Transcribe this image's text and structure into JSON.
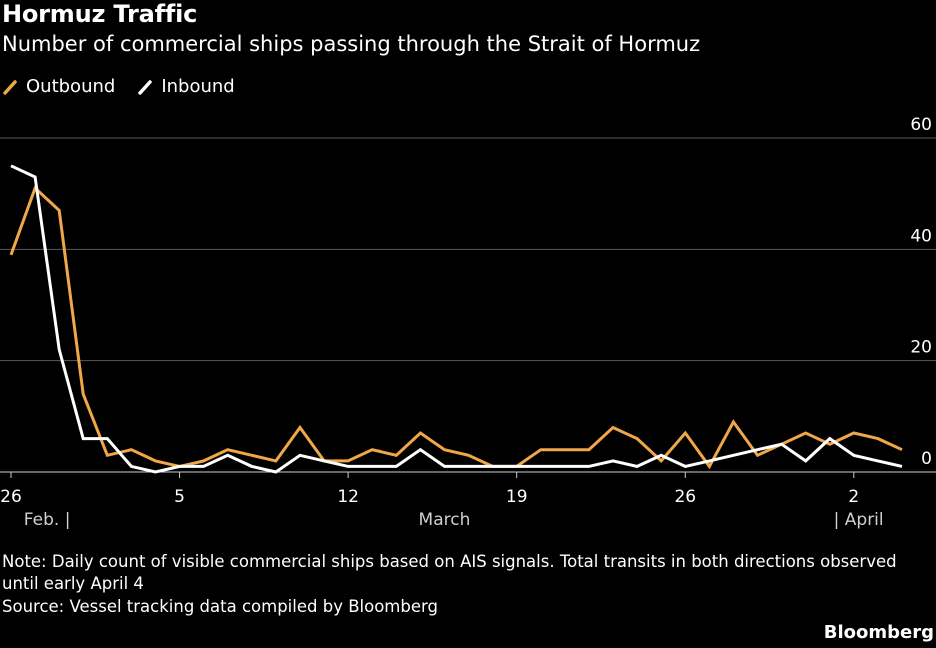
{
  "title": "Hormuz Traffic",
  "subtitle": "Number of commercial ships passing through the Strait of Hormuz",
  "legend": [
    {
      "label": "Outbound",
      "color": "#f0a748"
    },
    {
      "label": "Inbound",
      "color": "#ffffff"
    }
  ],
  "note": "Note: Daily count of visible commercial ships based on AIS signals. Total transits in both directions observed until early April 4",
  "source": "Source: Vessel tracking data compiled by Bloomberg",
  "brand": "Bloomberg",
  "chart_data": {
    "type": "line",
    "title": "Hormuz Traffic",
    "subtitle": "Number of commercial ships passing through the Strait of Hormuz",
    "ylim": [
      0,
      60
    ],
    "yticks": [
      0,
      20,
      40,
      60
    ],
    "y_axis_side": "right",
    "grid": true,
    "legend_position": "top-left",
    "x_tick_labels": [
      "26",
      "5",
      "12",
      "19",
      "26",
      "2"
    ],
    "x_tick_indices": [
      0,
      7,
      14,
      21,
      28,
      35
    ],
    "month_labels": [
      {
        "text": "Feb. |",
        "index": 1.5
      },
      {
        "text": "March",
        "index": 18
      },
      {
        "text": "| April",
        "index": 35.2
      }
    ],
    "x": [
      "Feb 26",
      "Feb 27",
      "Feb 28",
      "Mar 1",
      "Mar 2",
      "Mar 3",
      "Mar 4",
      "Mar 5",
      "Mar 6",
      "Mar 7",
      "Mar 8",
      "Mar 9",
      "Mar 10",
      "Mar 11",
      "Mar 12",
      "Mar 13",
      "Mar 14",
      "Mar 15",
      "Mar 16",
      "Mar 17",
      "Mar 18",
      "Mar 19",
      "Mar 20",
      "Mar 21",
      "Mar 22",
      "Mar 23",
      "Mar 24",
      "Mar 25",
      "Mar 26",
      "Mar 27",
      "Mar 28",
      "Mar 29",
      "Mar 30",
      "Mar 31",
      "Apr 1",
      "Apr 2",
      "Apr 3",
      "Apr 4"
    ],
    "series": [
      {
        "name": "Outbound",
        "color": "#f0a748",
        "values": [
          39,
          51,
          47,
          14,
          3,
          4,
          2,
          1,
          2,
          4,
          3,
          2,
          8,
          2,
          2,
          4,
          3,
          7,
          4,
          3,
          1,
          1,
          4,
          4,
          4,
          8,
          6,
          2,
          7,
          1,
          9,
          3,
          5,
          7,
          5,
          7,
          6,
          4
        ]
      },
      {
        "name": "Inbound",
        "color": "#ffffff",
        "values": [
          55,
          53,
          22,
          6,
          6,
          1,
          0,
          1,
          1,
          3,
          1,
          0,
          3,
          2,
          1,
          1,
          1,
          4,
          1,
          1,
          1,
          1,
          1,
          1,
          1,
          2,
          1,
          3,
          1,
          2,
          3,
          4,
          5,
          2,
          6,
          3,
          2,
          1
        ]
      }
    ]
  }
}
